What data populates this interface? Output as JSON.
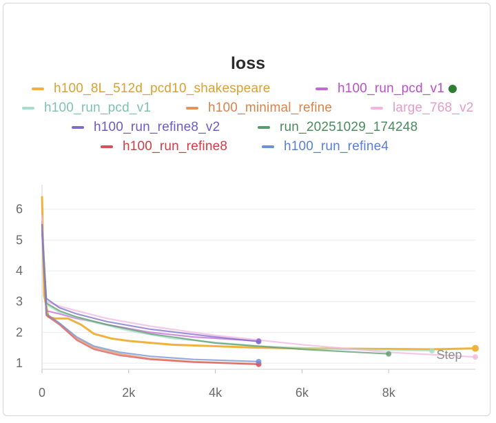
{
  "chart_data": {
    "type": "line",
    "title": "loss",
    "xlabel": "Step",
    "ylabel": "",
    "xlim": [
      0,
      10000
    ],
    "ylim": [
      0.8,
      6.8
    ],
    "x_ticks": [
      {
        "value": 0,
        "label": "0"
      },
      {
        "value": 2000,
        "label": "2k"
      },
      {
        "value": 4000,
        "label": "4k"
      },
      {
        "value": 6000,
        "label": "6k"
      },
      {
        "value": 8000,
        "label": "8k"
      }
    ],
    "y_ticks": [
      {
        "value": 1,
        "label": "1"
      },
      {
        "value": 2,
        "label": "2"
      },
      {
        "value": 3,
        "label": "3"
      },
      {
        "value": 4,
        "label": "4"
      },
      {
        "value": 5,
        "label": "5"
      },
      {
        "value": 6,
        "label": "6"
      }
    ],
    "grid": true,
    "legend_position": "top",
    "active_indicator_color": "#2e7d32",
    "series": [
      {
        "name": "h100_8L_512d_pcd10_shakespeare",
        "color": "#f0b23b",
        "x": [
          0,
          50,
          150,
          300,
          600,
          900,
          1200,
          1600,
          2000,
          2500,
          3000,
          4000,
          5000,
          6000,
          7000,
          8000,
          9000,
          10000
        ],
        "y": [
          6.4,
          3.2,
          2.5,
          2.45,
          2.45,
          2.25,
          1.95,
          1.8,
          1.72,
          1.66,
          1.6,
          1.55,
          1.5,
          1.48,
          1.47,
          1.46,
          1.45,
          1.48
        ]
      },
      {
        "name": "h100_run_pcd_v1",
        "color": "#c468d6",
        "x": [
          0,
          100,
          400,
          800,
          1500,
          2500,
          3500,
          5000
        ],
        "y": [
          5.2,
          2.7,
          2.6,
          2.45,
          2.25,
          2.0,
          1.85,
          1.72
        ]
      },
      {
        "name": "h100_run_pcd_v1",
        "color": "#a8dccd",
        "x": [
          0,
          100,
          400,
          1000,
          2000,
          3000,
          5000,
          7000,
          9000
        ],
        "y": [
          5.4,
          2.9,
          2.65,
          2.4,
          2.05,
          1.8,
          1.55,
          1.45,
          1.4
        ]
      },
      {
        "name": "h100_minimal_refine",
        "color": "#e0955c",
        "x": [
          0,
          100,
          400,
          800,
          1200,
          1800,
          2500,
          3500,
          5000
        ],
        "y": [
          5.6,
          2.6,
          2.3,
          1.8,
          1.5,
          1.3,
          1.15,
          1.05,
          0.98
        ]
      },
      {
        "name": "large_768_v2",
        "color": "#f2b6dd",
        "x": [
          0,
          100,
          400,
          800,
          1500,
          2500,
          4000,
          6000,
          8000,
          10000
        ],
        "y": [
          5.8,
          3.0,
          2.85,
          2.7,
          2.45,
          2.2,
          1.9,
          1.6,
          1.35,
          1.2
        ]
      },
      {
        "name": "h100_run_refine8_v2",
        "color": "#7b6ccf",
        "x": [
          0,
          100,
          400,
          800,
          1500,
          2500,
          4000,
          5000
        ],
        "y": [
          5.3,
          3.1,
          2.8,
          2.6,
          2.35,
          2.1,
          1.85,
          1.7
        ]
      },
      {
        "name": "run_20251029_174248",
        "color": "#5b9a6e",
        "x": [
          0,
          100,
          400,
          800,
          1500,
          2500,
          4000,
          6000,
          8000
        ],
        "y": [
          5.5,
          2.95,
          2.7,
          2.5,
          2.25,
          1.95,
          1.65,
          1.45,
          1.3
        ]
      },
      {
        "name": "h100_run_refine8",
        "color": "#d9525a",
        "x": [
          0,
          100,
          400,
          800,
          1200,
          1800,
          2500,
          3500,
          5000
        ],
        "y": [
          5.5,
          2.55,
          2.25,
          1.75,
          1.45,
          1.25,
          1.12,
          1.03,
          0.96
        ]
      },
      {
        "name": "h100_run_refine4",
        "color": "#6f8fd6",
        "x": [
          0,
          100,
          400,
          800,
          1200,
          1800,
          2500,
          3500,
          5000
        ],
        "y": [
          5.5,
          2.6,
          2.3,
          1.85,
          1.55,
          1.35,
          1.22,
          1.12,
          1.05
        ]
      }
    ]
  }
}
